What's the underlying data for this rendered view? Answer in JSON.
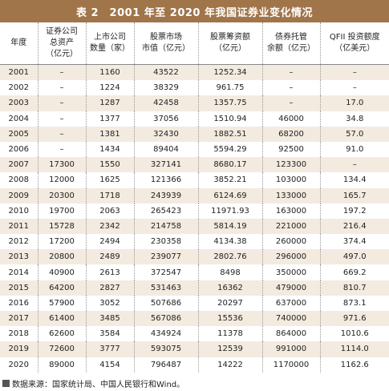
{
  "title": "表 2　2001 年至 2020 年我国证券业变化情况",
  "columns": [
    "年度",
    "证券公司\n总资产\n（亿元）",
    "上市公司\n数量（家）",
    "股票市场\n市值（亿元）",
    "股票筹资额\n（亿元）",
    "债券托管\n余额（亿元）",
    "QFII 投资额度\n（亿美元）"
  ],
  "rows": [
    [
      "2001",
      "–",
      "1160",
      "43522",
      "1252.34",
      "–",
      "–"
    ],
    [
      "2002",
      "–",
      "1224",
      "38329",
      "961.75",
      "–",
      "–"
    ],
    [
      "2003",
      "–",
      "1287",
      "42458",
      "1357.75",
      "–",
      "17.0"
    ],
    [
      "2004",
      "–",
      "1377",
      "37056",
      "1510.94",
      "46000",
      "34.8"
    ],
    [
      "2005",
      "–",
      "1381",
      "32430",
      "1882.51",
      "68200",
      "57.0"
    ],
    [
      "2006",
      "–",
      "1434",
      "89404",
      "5594.29",
      "92500",
      "91.0"
    ],
    [
      "2007",
      "17300",
      "1550",
      "327141",
      "8680.17",
      "123300",
      "–"
    ],
    [
      "2008",
      "12000",
      "1625",
      "121366",
      "3852.21",
      "103000",
      "134.4"
    ],
    [
      "2009",
      "20300",
      "1718",
      "243939",
      "6124.69",
      "133000",
      "165.7"
    ],
    [
      "2010",
      "19700",
      "2063",
      "265423",
      "11971.93",
      "163000",
      "197.2"
    ],
    [
      "2011",
      "15728",
      "2342",
      "214758",
      "5814.19",
      "221000",
      "216.4"
    ],
    [
      "2012",
      "17200",
      "2494",
      "230358",
      "4134.38",
      "260000",
      "374.4"
    ],
    [
      "2013",
      "20800",
      "2489",
      "239077",
      "2802.76",
      "296000",
      "497.0"
    ],
    [
      "2014",
      "40900",
      "2613",
      "372547",
      "8498",
      "350000",
      "669.2"
    ],
    [
      "2015",
      "64200",
      "2827",
      "531463",
      "16362",
      "479000",
      "810.7"
    ],
    [
      "2016",
      "57900",
      "3052",
      "507686",
      "20297",
      "637000",
      "873.1"
    ],
    [
      "2017",
      "61400",
      "3485",
      "567086",
      "15536",
      "740000",
      "971.6"
    ],
    [
      "2018",
      "62600",
      "3584",
      "434924",
      "11378",
      "864000",
      "1010.6"
    ],
    [
      "2019",
      "72600",
      "3777",
      "593075",
      "12539",
      "991000",
      "1114.0"
    ],
    [
      "2020",
      "89000",
      "4154",
      "796487",
      "14222",
      "1170000",
      "1162.6"
    ]
  ],
  "source": "数据来源：国家统计局、中国人民银行和Wind。",
  "colors": {
    "title_bg": "#a0754a",
    "stripe": "#f3ebe0"
  }
}
